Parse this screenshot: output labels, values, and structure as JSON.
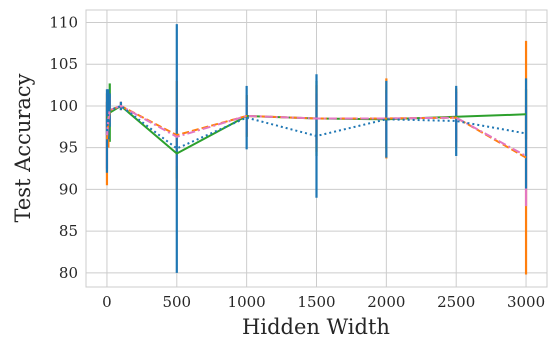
{
  "chart_data": {
    "type": "line",
    "xlabel": "Hidden Width",
    "ylabel": "Test Accuracy",
    "xlim": [
      -150,
      3150
    ],
    "ylim": [
      78.3,
      111.5
    ],
    "xticks": [
      0,
      500,
      1000,
      1500,
      2000,
      2500,
      3000
    ],
    "yticks": [
      80,
      85,
      90,
      95,
      100,
      105,
      110
    ],
    "grid": true,
    "legend": "none",
    "series": [
      {
        "color": "#2ca02c",
        "linestyle": "solid",
        "x": [
          0,
          10,
          20,
          100,
          500,
          1000,
          1500,
          2000,
          2500,
          3000
        ],
        "y": [
          98.5,
          99.0,
          99.2,
          100.0,
          94.3,
          98.8,
          98.5,
          98.4,
          98.7,
          99.0
        ],
        "err": [
          2.0,
          2.5,
          3.5,
          0.3,
          3.0,
          2.5,
          4.5,
          3.5,
          3.0,
          3.0
        ]
      },
      {
        "color": "#ff7f0e",
        "linestyle": "dashed",
        "x": [
          0,
          10,
          20,
          100,
          500,
          1000,
          1500,
          2000,
          2500,
          3000
        ],
        "y": [
          96.0,
          98.0,
          99.5,
          100.0,
          96.5,
          98.8,
          98.5,
          98.5,
          98.6,
          93.8
        ],
        "err": [
          5.5,
          3.0,
          1.5,
          0.5,
          6.5,
          2.5,
          4.0,
          4.8,
          3.5,
          14.0
        ]
      },
      {
        "color": "#e377c2",
        "linestyle": "dashdot",
        "x": [
          0,
          10,
          20,
          100,
          500,
          1000,
          1500,
          2000,
          2500,
          3000
        ],
        "y": [
          96.5,
          98.5,
          99.5,
          100.0,
          96.3,
          98.8,
          98.5,
          98.5,
          98.6,
          94.0
        ],
        "err": [
          4.0,
          2.5,
          1.5,
          0.5,
          3.5,
          2.0,
          3.0,
          3.0,
          3.0,
          6.0
        ]
      },
      {
        "color": "#1f77b4",
        "linestyle": "dotted",
        "x": [
          0,
          10,
          20,
          100,
          500,
          1000,
          1500,
          2000,
          2500,
          3000
        ],
        "y": [
          97.0,
          99.0,
          99.5,
          100.0,
          94.9,
          98.6,
          96.4,
          98.4,
          98.2,
          96.7
        ],
        "err": [
          5.0,
          3.0,
          2.0,
          0.5,
          14.9,
          3.8,
          7.4,
          4.6,
          4.2,
          6.6
        ]
      }
    ]
  }
}
